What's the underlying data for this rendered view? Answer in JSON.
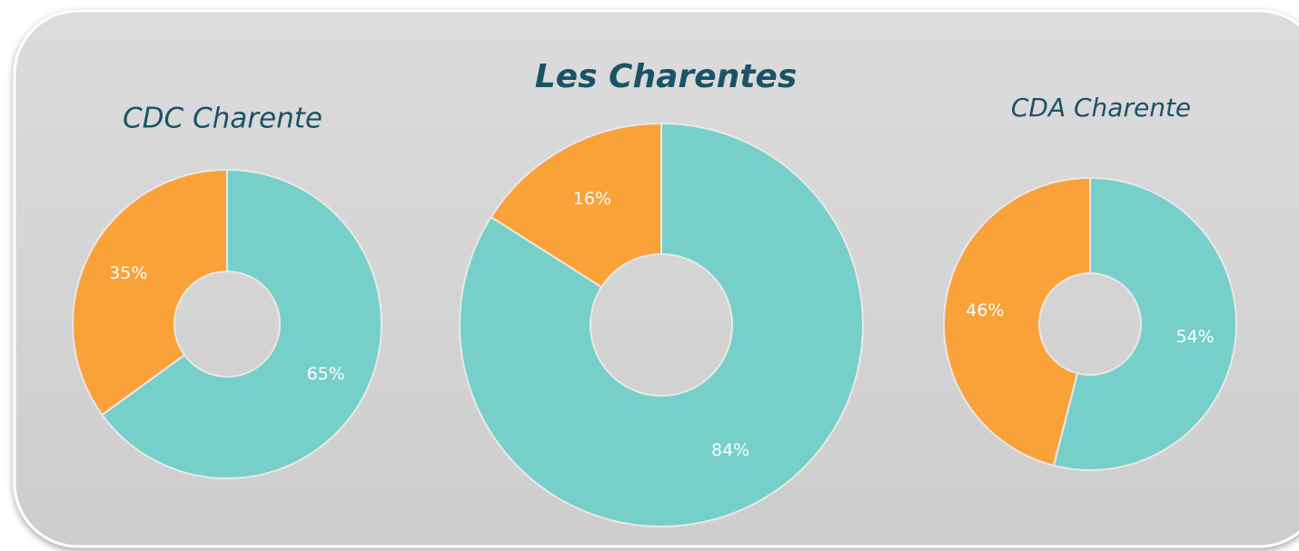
{
  "chart_data": [
    {
      "type": "donut",
      "title": "Les Charentes",
      "values": [
        84,
        16
      ],
      "value_labels": [
        "84%",
        "16%"
      ],
      "colors": [
        "#76d0c9",
        "#f9a23a"
      ]
    },
    {
      "type": "donut",
      "title": "CDC Charente",
      "values": [
        65,
        35
      ],
      "value_labels": [
        "65%",
        "35%"
      ],
      "colors": [
        "#76d0c9",
        "#f9a23a"
      ]
    },
    {
      "type": "donut",
      "title": "CDA Charente",
      "values": [
        54,
        46
      ],
      "value_labels": [
        "54%",
        "46%"
      ],
      "colors": [
        "#76d0c9",
        "#f9a23a"
      ]
    }
  ]
}
